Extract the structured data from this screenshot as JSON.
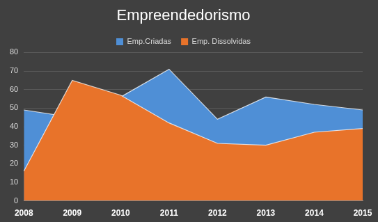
{
  "chart_data": {
    "type": "area",
    "title": "Empreendedorismo",
    "categories": [
      "2008",
      "2009",
      "2010",
      "2011",
      "2012",
      "2013",
      "2014",
      "2015"
    ],
    "series": [
      {
        "name": "Emp.Criadas",
        "color": "#4f8fd6",
        "values": [
          49,
          45,
          56,
          71,
          44,
          56,
          52,
          49
        ]
      },
      {
        "name": "Emp. Dissolvidas",
        "color": "#e8732a",
        "values": [
          16,
          65,
          57,
          42,
          31,
          30,
          37,
          39
        ]
      }
    ],
    "ylim": [
      0,
      80
    ],
    "yticks": [
      0,
      10,
      20,
      30,
      40,
      50,
      60,
      70,
      80
    ],
    "grid": true,
    "legend": "top"
  }
}
